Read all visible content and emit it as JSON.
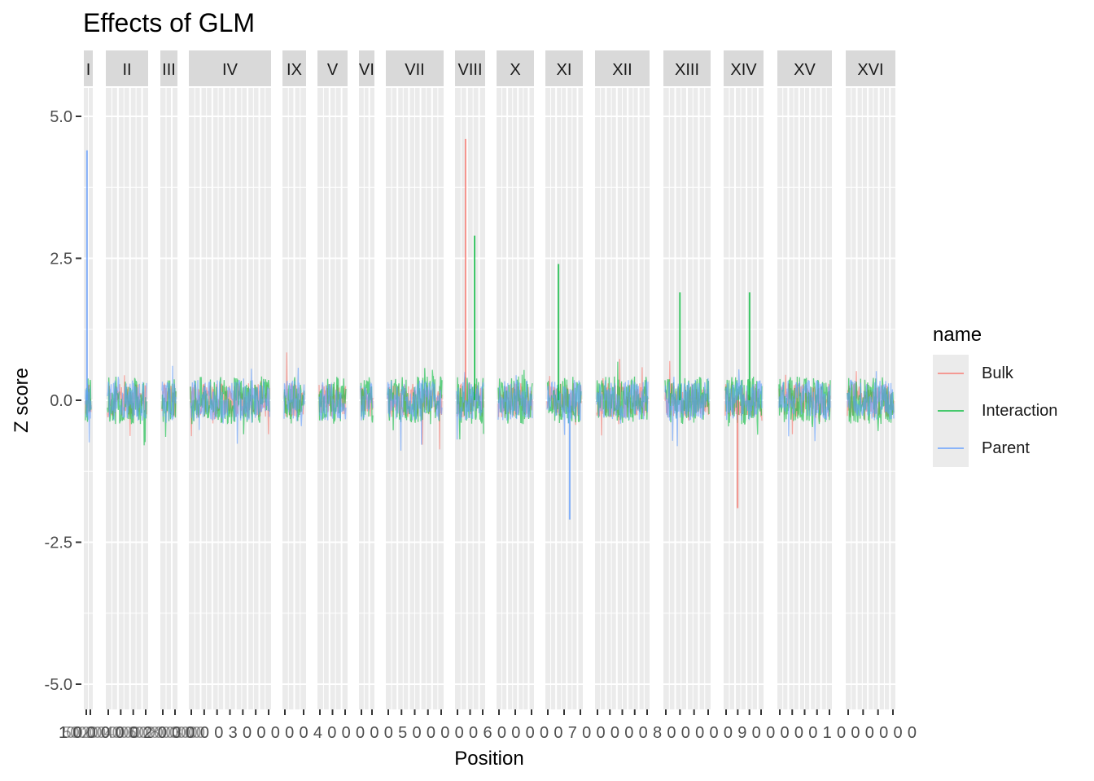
{
  "chart_data": {
    "type": "line",
    "title": "Effects of GLM",
    "xlabel": "Position",
    "ylabel": "Z score",
    "ylim": [
      -5.5,
      5.5
    ],
    "y_ticks": [
      5.0,
      2.5,
      0.0,
      -2.5,
      -5.0
    ],
    "y_tick_labels": [
      "5.0",
      "2.5",
      "0.0",
      "-2.5",
      "-5.0"
    ],
    "facets": [
      "I",
      "II",
      "III",
      "IV",
      "IX",
      "V",
      "VI",
      "VII",
      "VIII",
      "X",
      "XI",
      "XII",
      "XIII",
      "XIV",
      "XV",
      "XVI"
    ],
    "grid": true,
    "legend": {
      "title": "name",
      "position": "right"
    },
    "series": [
      {
        "name": "Bulk",
        "color": "#F8766D"
      },
      {
        "name": "Interaction",
        "color": "#00BA38"
      },
      {
        "name": "Parent",
        "color": "#619CFF"
      }
    ],
    "peaks": [
      {
        "facet": "I",
        "series": "Parent",
        "z": 4.4
      },
      {
        "facet": "VIII",
        "series": "Bulk",
        "z": 4.6
      },
      {
        "facet": "VIII",
        "series": "Interaction",
        "z": 2.9
      },
      {
        "facet": "XI",
        "series": "Interaction",
        "z": 2.4
      },
      {
        "facet": "XI",
        "series": "Parent",
        "z": -2.1
      },
      {
        "facet": "XIV",
        "series": "Bulk",
        "z": -1.9
      },
      {
        "facet": "XIII",
        "series": "Interaction",
        "z": 1.9
      },
      {
        "facet": "XIV",
        "series": "Interaction",
        "z": 1.9
      }
    ],
    "x_tick_label_overlap": "1500002000004000006000008000003000000",
    "x_tick_labels": "1000002000003000004000005000006000007000008000009000001000000"
  }
}
